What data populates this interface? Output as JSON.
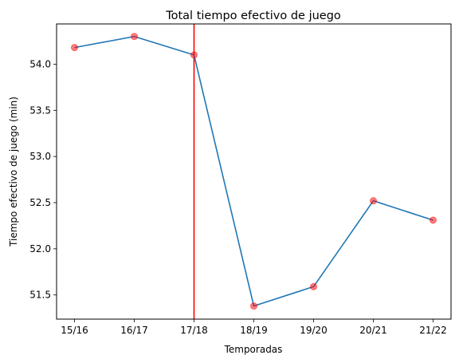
{
  "chart_data": {
    "type": "line",
    "title": "Total tiempo efectivo de juego",
    "xlabel": "Temporadas",
    "ylabel": "Tiempo efectivo de juego (min)",
    "categories": [
      "15/16",
      "16/17",
      "17/18",
      "18/19",
      "19/20",
      "20/21",
      "21/22"
    ],
    "series": [
      {
        "values": [
          54.18,
          54.3,
          54.1,
          51.38,
          51.59,
          52.52,
          52.31
        ],
        "color": "#1f77b4"
      }
    ],
    "markers": {
      "color": "#ff0000",
      "opacity": 0.5
    },
    "vline": {
      "category": "17/18",
      "color": "#ff0000"
    },
    "ylim": [
      51.238,
      54.436
    ],
    "yticks": [
      51.5,
      52.0,
      52.5,
      53.0,
      53.5,
      54.0
    ],
    "ytick_labels": [
      "51.5",
      "52.0",
      "52.5",
      "53.0",
      "53.5",
      "54.0"
    ],
    "grid": false
  }
}
